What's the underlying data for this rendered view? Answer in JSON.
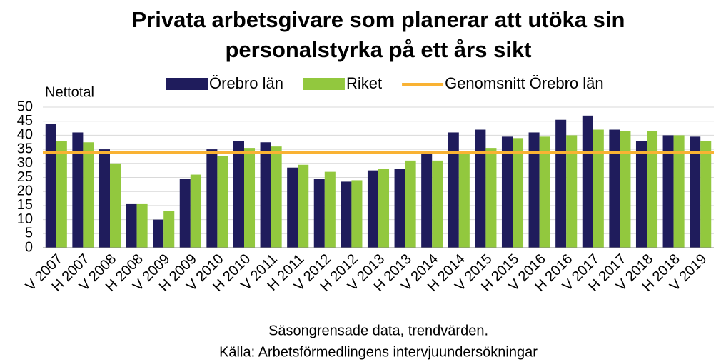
{
  "chart_data": {
    "type": "bar",
    "title": [
      "Privata arbetsgivare som planerar att utöka sin",
      "personalstyrka på ett års sikt"
    ],
    "y_label": "Nettotal",
    "categories": [
      "V 2007",
      "H 2007",
      "V 2008",
      "H 2008",
      "V 2009",
      "H 2009",
      "V 2010",
      "H 2010",
      "V 2011",
      "H 2011",
      "V 2012",
      "H 2012",
      "V 2013",
      "H 2013",
      "V 2014",
      "H 2014",
      "V 2015",
      "H 2015",
      "V 2016",
      "H 2016",
      "V 2017",
      "H 2017",
      "V 2018",
      "H 2018",
      "V 2019"
    ],
    "series": [
      {
        "name": "Örebro län",
        "color": "#1f1c5c",
        "values": [
          44,
          41,
          35,
          15.5,
          10,
          24.5,
          35,
          38,
          37.5,
          28.5,
          24.5,
          23.5,
          27.5,
          28,
          34,
          41,
          42,
          39.5,
          41,
          45.5,
          47,
          42,
          38,
          40,
          39.5
        ]
      },
      {
        "name": "Riket",
        "color": "#92c83e",
        "values": [
          38,
          37.5,
          30,
          15.5,
          13,
          26,
          32.5,
          35.5,
          36,
          29.5,
          27,
          24,
          28,
          31,
          31,
          34,
          35.5,
          39,
          39.5,
          40,
          42,
          41.5,
          41.5,
          40,
          38
        ]
      }
    ],
    "average": {
      "name": "Genomsnitt Örebro län",
      "color": "#f9b233",
      "value": 34
    },
    "ylim": [
      0,
      50
    ],
    "yticks": [
      0,
      5,
      10,
      15,
      20,
      25,
      30,
      35,
      40,
      45,
      50
    ],
    "grid": true,
    "notes": [
      "Säsongrensade data, trendvärden.",
      "Källa: Arbetsförmedlingens intervjuundersökningar"
    ]
  }
}
